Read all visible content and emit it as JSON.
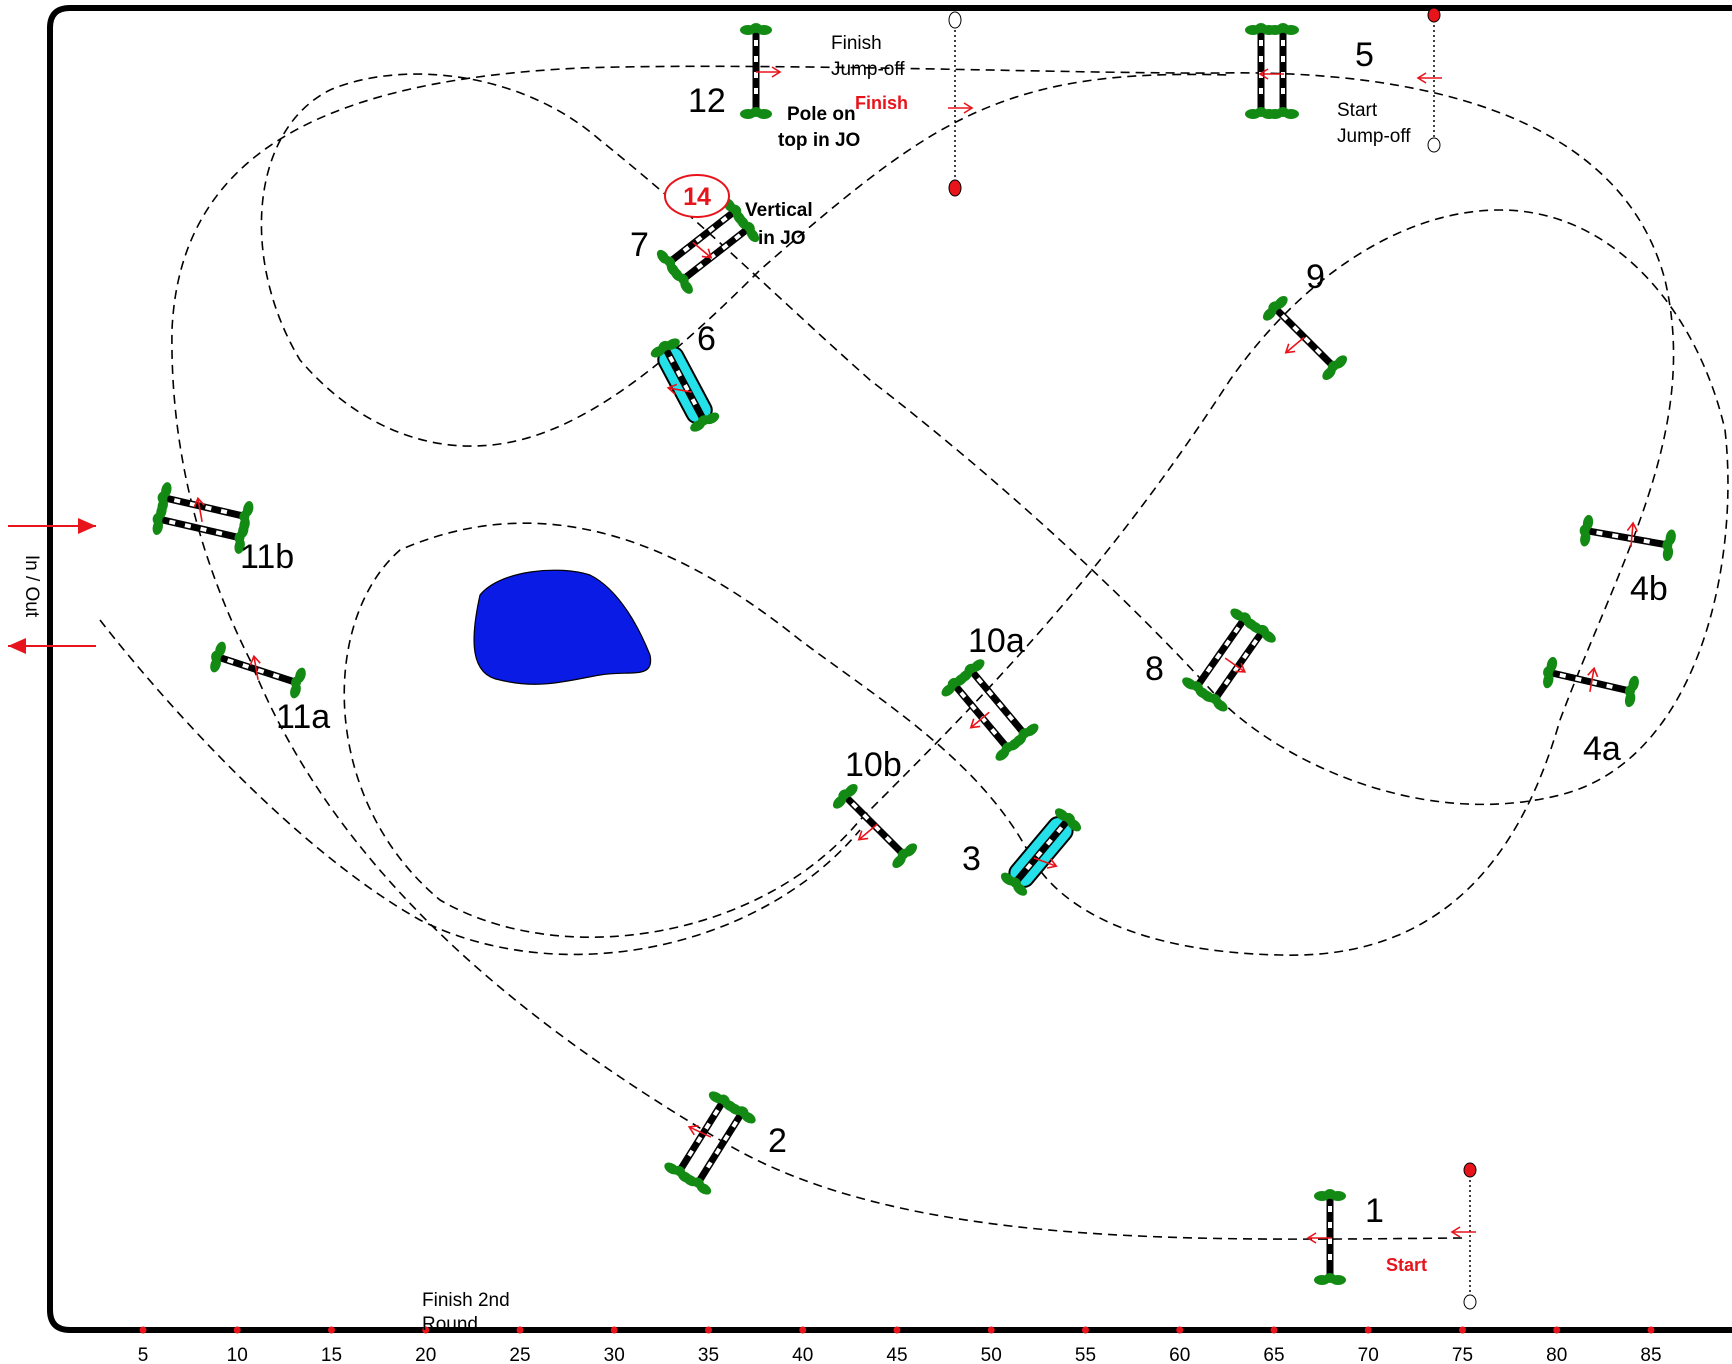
{
  "arena": {
    "entrance_label": "In / Out",
    "colors": {
      "border": "#000000",
      "pole": "#000000",
      "leaf": "#138a13",
      "arrow": "#e8141b",
      "water": "#0a1be6",
      "water_tray": "#24e0e8"
    }
  },
  "ruler": {
    "ticks": [
      "5",
      "10",
      "15",
      "20",
      "25",
      "30",
      "35",
      "40",
      "45",
      "50",
      "55",
      "60",
      "65",
      "70",
      "75",
      "80",
      "85"
    ]
  },
  "fences": {
    "f1": "1",
    "f2": "2",
    "f3": "3",
    "f4a": "4a",
    "f4b": "4b",
    "f5": "5",
    "f6": "6",
    "f7": "7",
    "f8": "8",
    "f9": "9",
    "f10a": "10a",
    "f10b": "10b",
    "f11a": "11a",
    "f11b": "11b",
    "f12": "12",
    "f14": "14"
  },
  "notes": {
    "start": "Start",
    "finish": "Finish",
    "finish_jumpoff_1": "Finish",
    "finish_jumpoff_2": "Jump-off",
    "start_jumpoff_1": "Start",
    "start_jumpoff_2": "Jump-off",
    "pole_on_1": "Pole on",
    "pole_on_2": "top in JO",
    "vertical_1": "Vertical",
    "vertical_2": "in JO",
    "finish_2nd_1": "Finish 2nd",
    "finish_2nd_2": "Round"
  }
}
